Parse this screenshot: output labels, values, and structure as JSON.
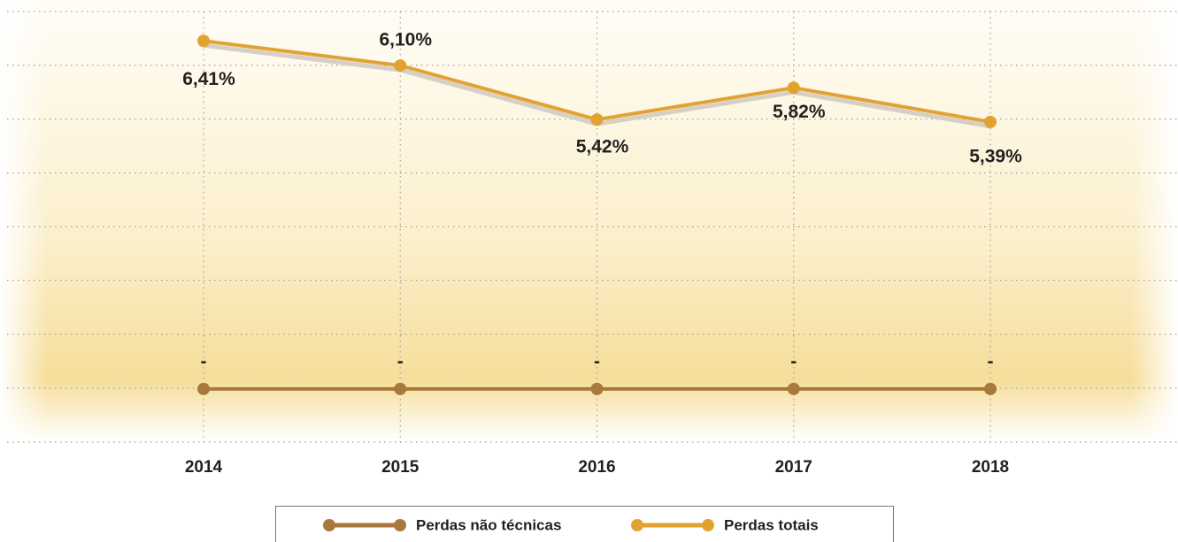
{
  "chart_data": {
    "type": "line",
    "categories": [
      "2014",
      "2015",
      "2016",
      "2017",
      "2018"
    ],
    "series": [
      {
        "name": "Perdas não técnicas",
        "color": "#a8783c",
        "axis": "y2",
        "values": [
          0,
          0,
          0,
          0,
          0
        ],
        "value_labels": [
          "-",
          "-",
          "-",
          "-",
          "-"
        ]
      },
      {
        "name": "Perdas totais",
        "color": "#e2a232",
        "values": [
          6.41,
          6.1,
          5.42,
          5.82,
          5.39
        ],
        "value_labels": [
          "6,41%",
          "6,10%",
          "5,42%",
          "5,82%",
          "5,39%"
        ]
      }
    ],
    "ylim": [
      1.36,
      6.78
    ],
    "y2lim": [
      -1,
      7.1
    ],
    "grid": true,
    "legend": "bottom"
  }
}
